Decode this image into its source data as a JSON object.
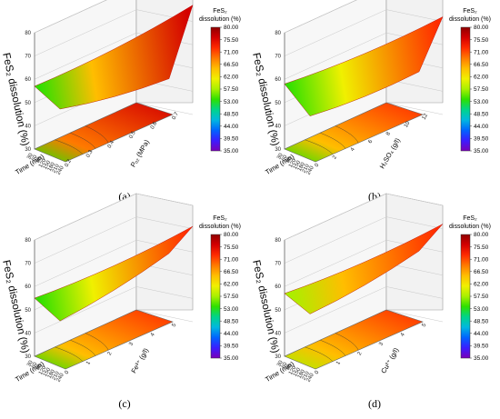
{
  "chart_data": [
    {
      "type": "surface3d",
      "panel": "(a)",
      "zlabel": "FeS₂ dissolution (%)",
      "xlabel": "Time (min)",
      "ylabel": "Pₒ₂ (MPa)",
      "zlim": [
        30,
        80
      ],
      "zticks": [
        "30",
        "40",
        "50",
        "60",
        "70",
        "80"
      ],
      "xticks": [
        "30",
        "60",
        "90",
        "120",
        "150",
        "180",
        "210",
        "240"
      ],
      "yticks": [
        "0.2",
        "0.3",
        "0.4",
        "0.5",
        "0.6",
        "0.7"
      ],
      "corners": {
        "near_low_time": 55,
        "near_high_time": 54,
        "far_low_time": 57,
        "far_high_time": 77
      },
      "colorbar_title": [
        "FeS₂",
        "dissolution (%)"
      ],
      "colorbar_ticks": [
        "80.00",
        "75.50",
        "71.00",
        "66.50",
        "62.00",
        "57.50",
        "53.00",
        "48.50",
        "44.00",
        "39.50",
        "35.00"
      ]
    },
    {
      "type": "surface3d",
      "panel": "(b)",
      "zlabel": "FeS₂ dissolution (%)",
      "xlabel": "Time (min)",
      "ylabel": "H₂SO₄ (g/l)",
      "zlim": [
        30,
        80
      ],
      "zticks": [
        "30",
        "40",
        "50",
        "60",
        "70",
        "80"
      ],
      "xticks": [
        "30",
        "60",
        "90",
        "120",
        "150",
        "180",
        "210",
        "240"
      ],
      "yticks": [
        "0",
        "2",
        "4",
        "6",
        "8",
        "10",
        "12"
      ],
      "corners": {
        "near_low_time": 52,
        "near_high_time": 57,
        "far_low_time": 58,
        "far_high_time": 72
      },
      "colorbar_title": [
        "FeS₂",
        "dissolution (%)"
      ],
      "colorbar_ticks": [
        "80.00",
        "75.50",
        "71.00",
        "66.50",
        "62.00",
        "57.50",
        "53.00",
        "48.50",
        "44.00",
        "39.50",
        "35.00"
      ]
    },
    {
      "type": "surface3d",
      "panel": "(c)",
      "zlabel": "FeS₂ dissolution (%)",
      "xlabel": "Time (min)",
      "ylabel": "Fe³⁺ (g/l)",
      "zlim": [
        30,
        80
      ],
      "zticks": [
        "30",
        "40",
        "50",
        "60",
        "70",
        "80"
      ],
      "xticks": [
        "30",
        "60",
        "90",
        "120",
        "150",
        "180",
        "210",
        "240"
      ],
      "yticks": [
        "0",
        "1",
        "2",
        "3",
        "4",
        "5"
      ],
      "corners": {
        "near_low_time": 53,
        "near_high_time": 68,
        "far_low_time": 55,
        "far_high_time": 71
      },
      "colorbar_title": [
        "FeS₂",
        "dissolution (%)"
      ],
      "colorbar_ticks": [
        "80.00",
        "75.50",
        "71.00",
        "66.50",
        "62.00",
        "57.50",
        "53.00",
        "48.50",
        "44.00",
        "39.50",
        "35.00"
      ]
    },
    {
      "type": "surface3d",
      "panel": "(d)",
      "zlabel": "FeS₂ dissolution (%)",
      "xlabel": "Time (min)",
      "ylabel": "Cu²⁺ (g/l)",
      "zlim": [
        30,
        80
      ],
      "zticks": [
        "30",
        "40",
        "50",
        "60",
        "70",
        "80"
      ],
      "xticks": [
        "30",
        "60",
        "90",
        "120",
        "150",
        "180",
        "210",
        "240"
      ],
      "yticks": [
        "0",
        "1",
        "2",
        "3",
        "4",
        "5"
      ],
      "corners": {
        "near_low_time": 56,
        "near_high_time": 69,
        "far_low_time": 57,
        "far_high_time": 72
      },
      "colorbar_title": [
        "FeS₂",
        "dissolution (%)"
      ],
      "colorbar_ticks": [
        "80.00",
        "75.50",
        "71.00",
        "66.50",
        "62.00",
        "57.50",
        "53.00",
        "48.50",
        "44.00",
        "39.50",
        "35.00"
      ]
    }
  ],
  "colorscale": [
    "#7a00b8",
    "#3b1cff",
    "#0064ff",
    "#00b7e0",
    "#00d48a",
    "#2ee000",
    "#a8f000",
    "#f0f000",
    "#ffbe00",
    "#ff7a00",
    "#ff2b00",
    "#d40000",
    "#900000"
  ]
}
